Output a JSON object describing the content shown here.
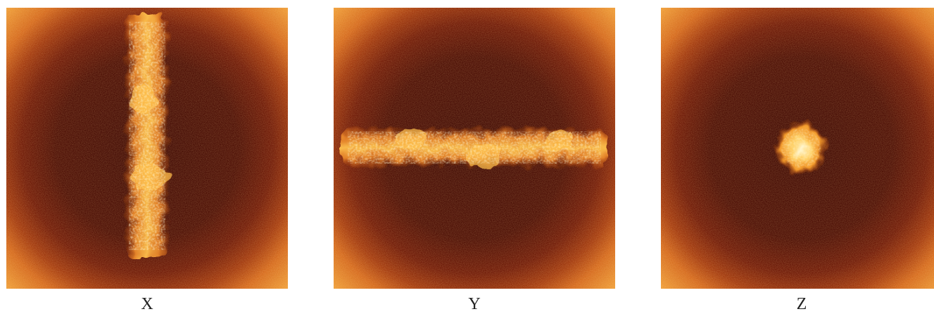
{
  "panels": [
    {
      "id": "x",
      "label": "X",
      "structure": "vertical-band"
    },
    {
      "id": "y",
      "label": "Y",
      "structure": "horizontal-band"
    },
    {
      "id": "z",
      "label": "Z",
      "structure": "central-spot"
    }
  ],
  "colors": {
    "background": "#ffffff",
    "edge_glow": "#e07a1a",
    "mid": "#8a1e05",
    "dark": "#3a0400",
    "bright": "#ffc14d",
    "core": "#fff6cf"
  }
}
